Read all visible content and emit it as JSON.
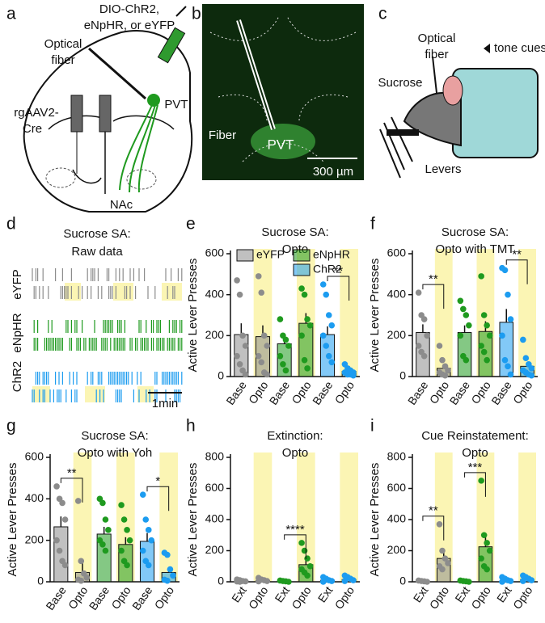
{
  "labels": {
    "panels": [
      "a",
      "b",
      "c",
      "d",
      "e",
      "f",
      "g",
      "h",
      "i"
    ],
    "a": {
      "virus": [
        "DIO-ChR2,",
        "eNpHR, or eYFP"
      ],
      "fiber": [
        "Optical",
        "fiber"
      ],
      "cre": [
        "rgAAV2-",
        "Cre"
      ],
      "pvt": "PVT",
      "nac": "NAc"
    },
    "b": {
      "fiber": "Fiber",
      "pvt": "PVT",
      "scale": "300 µm"
    },
    "c": {
      "fiber": [
        "Optical",
        "fiber"
      ],
      "tone": "tone cues",
      "sucrose": "Sucrose",
      "levers": "Levers"
    },
    "d": {
      "title": [
        "Sucrose SA:",
        "Raw data"
      ],
      "rows": [
        "eYFP",
        "eNpHR",
        "ChR2"
      ],
      "scale": "1min"
    }
  },
  "chart_data": [
    {
      "type": "bar",
      "title": [
        "Sucrose SA:",
        "Opto"
      ],
      "ylabel": "Active Lever Presses",
      "categories": [
        "Base",
        "Opto",
        "Base",
        "Opto",
        "Base",
        "Opto"
      ],
      "values": [
        205,
        195,
        160,
        260,
        205,
        25
      ],
      "errors": [
        55,
        55,
        40,
        50,
        40,
        6
      ],
      "colors": [
        "#8c8c8c",
        "#8c8c8c",
        "#1f9a1f",
        "#1f9a1f",
        "#1c9cf0",
        "#1c9cf0"
      ],
      "points": [
        [
          470,
          400,
          200,
          150,
          100,
          60,
          30,
          10
        ],
        [
          490,
          410,
          200,
          150,
          100,
          70,
          20,
          10
        ],
        [
          280,
          200,
          180,
          150,
          100,
          60,
          30
        ],
        [
          430,
          400,
          280,
          250,
          200,
          80,
          40
        ],
        [
          450,
          400,
          300,
          250,
          200,
          150,
          100,
          70
        ],
        [
          60,
          40,
          30,
          20,
          20,
          10,
          10,
          5
        ]
      ],
      "legend": [
        {
          "name": "eYFP",
          "color": "#8c8c8c"
        },
        {
          "name": "eNpHR",
          "color": "#1f9a1f"
        },
        {
          "name": "ChR2",
          "color": "#1c9cf0"
        }
      ],
      "annotations": [
        {
          "text": "**",
          "pair": [
            4,
            5
          ]
        }
      ],
      "ylim": [
        0,
        600
      ],
      "yticks": [
        0,
        200,
        400,
        600
      ]
    },
    {
      "type": "bar",
      "title": [
        "Sucrose SA:",
        "Opto with TMT"
      ],
      "ylabel": "Active Lever Presses",
      "categories": [
        "Base",
        "Opto",
        "Base",
        "Opto",
        "Base",
        "Opto"
      ],
      "values": [
        215,
        40,
        215,
        220,
        265,
        50
      ],
      "errors": [
        40,
        18,
        35,
        50,
        65,
        20
      ],
      "colors": [
        "#8c8c8c",
        "#8c8c8c",
        "#1f9a1f",
        "#1f9a1f",
        "#1c9cf0",
        "#1c9cf0"
      ],
      "points": [
        [
          410,
          300,
          280,
          200,
          150,
          120,
          100
        ],
        [
          150,
          80,
          50,
          30,
          20,
          10,
          5
        ],
        [
          370,
          330,
          300,
          250,
          200,
          100,
          80
        ],
        [
          490,
          300,
          250,
          200,
          150,
          120,
          80
        ],
        [
          530,
          520,
          400,
          280,
          200,
          80,
          50,
          10
        ],
        [
          180,
          90,
          60,
          40,
          30,
          20,
          10,
          5
        ]
      ],
      "annotations": [
        {
          "text": "**",
          "pair": [
            0,
            1
          ]
        },
        {
          "text": "**",
          "pair": [
            4,
            5
          ]
        }
      ],
      "ylim": [
        0,
        600
      ],
      "yticks": [
        0,
        200,
        400,
        600
      ]
    },
    {
      "type": "bar",
      "title": [
        "Sucrose SA:",
        "Opto with Yoh"
      ],
      "ylabel": "Active Lever Presses",
      "categories": [
        "Base",
        "Opto",
        "Base",
        "Opto",
        "Base",
        "Opto"
      ],
      "values": [
        265,
        45,
        230,
        180,
        195,
        45
      ],
      "errors": [
        50,
        45,
        35,
        35,
        40,
        20
      ],
      "colors": [
        "#8c8c8c",
        "#8c8c8c",
        "#1f9a1f",
        "#1f9a1f",
        "#1c9cf0",
        "#1c9cf0"
      ],
      "points": [
        [
          460,
          400,
          380,
          300,
          200,
          150,
          100,
          80
        ],
        [
          390,
          100,
          40,
          20,
          10,
          5
        ],
        [
          400,
          380,
          300,
          250,
          200,
          180,
          150
        ],
        [
          370,
          300,
          250,
          200,
          150,
          100,
          80
        ],
        [
          420,
          300,
          250,
          200,
          150,
          100,
          80
        ],
        [
          140,
          130,
          60,
          30,
          10,
          5
        ]
      ],
      "annotations": [
        {
          "text": "**",
          "pair": [
            0,
            1
          ]
        },
        {
          "text": "*",
          "pair": [
            4,
            5
          ]
        }
      ],
      "ylim": [
        0,
        600
      ],
      "yticks": [
        0,
        200,
        400,
        600
      ]
    },
    {
      "type": "bar",
      "title": [
        "Extinction:",
        "Opto"
      ],
      "ylabel": "Active Lever Presses",
      "categories": [
        "Ext",
        "Opto",
        "Ext",
        "Opto",
        "Ext",
        "Opto"
      ],
      "values": [
        5,
        8,
        3,
        110,
        10,
        15
      ],
      "errors": [
        3,
        4,
        2,
        25,
        5,
        6
      ],
      "colors": [
        "#8c8c8c",
        "#8c8c8c",
        "#1f9a1f",
        "#1f9a1f",
        "#1c9cf0",
        "#1c9cf0"
      ],
      "points": [
        [
          15,
          10,
          5,
          3,
          2,
          0
        ],
        [
          25,
          15,
          10,
          5,
          3
        ],
        [
          8,
          5,
          3,
          0
        ],
        [
          250,
          200,
          150,
          100,
          80,
          60,
          40
        ],
        [
          30,
          20,
          10,
          5,
          0
        ],
        [
          40,
          30,
          20,
          10,
          5
        ]
      ],
      "annotations": [
        {
          "text": "****",
          "pair": [
            2,
            3
          ]
        }
      ],
      "ylim": [
        0,
        800
      ],
      "yticks": [
        0,
        200,
        400,
        600,
        800
      ]
    },
    {
      "type": "bar",
      "title": [
        "Cue Reinstatement:",
        "Opto"
      ],
      "ylabel": "Active Lever Presses",
      "categories": [
        "Ext",
        "Opto",
        "Ext",
        "Opto",
        "Ext",
        "Opto"
      ],
      "values": [
        5,
        150,
        5,
        225,
        5,
        15
      ],
      "errors": [
        3,
        35,
        3,
        70,
        3,
        6
      ],
      "colors": [
        "#8c8c8c",
        "#8c8c8c",
        "#1f9a1f",
        "#1f9a1f",
        "#1c9cf0",
        "#1c9cf0"
      ],
      "points": [
        [
          8,
          5,
          3,
          0
        ],
        [
          370,
          200,
          150,
          120,
          100,
          80
        ],
        [
          8,
          5,
          3,
          0
        ],
        [
          650,
          300,
          250,
          200,
          150,
          100,
          80
        ],
        [
          30,
          20,
          10,
          5,
          0
        ],
        [
          40,
          30,
          20,
          10,
          5
        ]
      ],
      "annotations": [
        {
          "text": "**",
          "pair": [
            0,
            1
          ]
        },
        {
          "text": "***",
          "pair": [
            2,
            3
          ]
        }
      ],
      "ylim": [
        0,
        800
      ],
      "yticks": [
        0,
        200,
        400,
        600,
        800
      ]
    }
  ]
}
